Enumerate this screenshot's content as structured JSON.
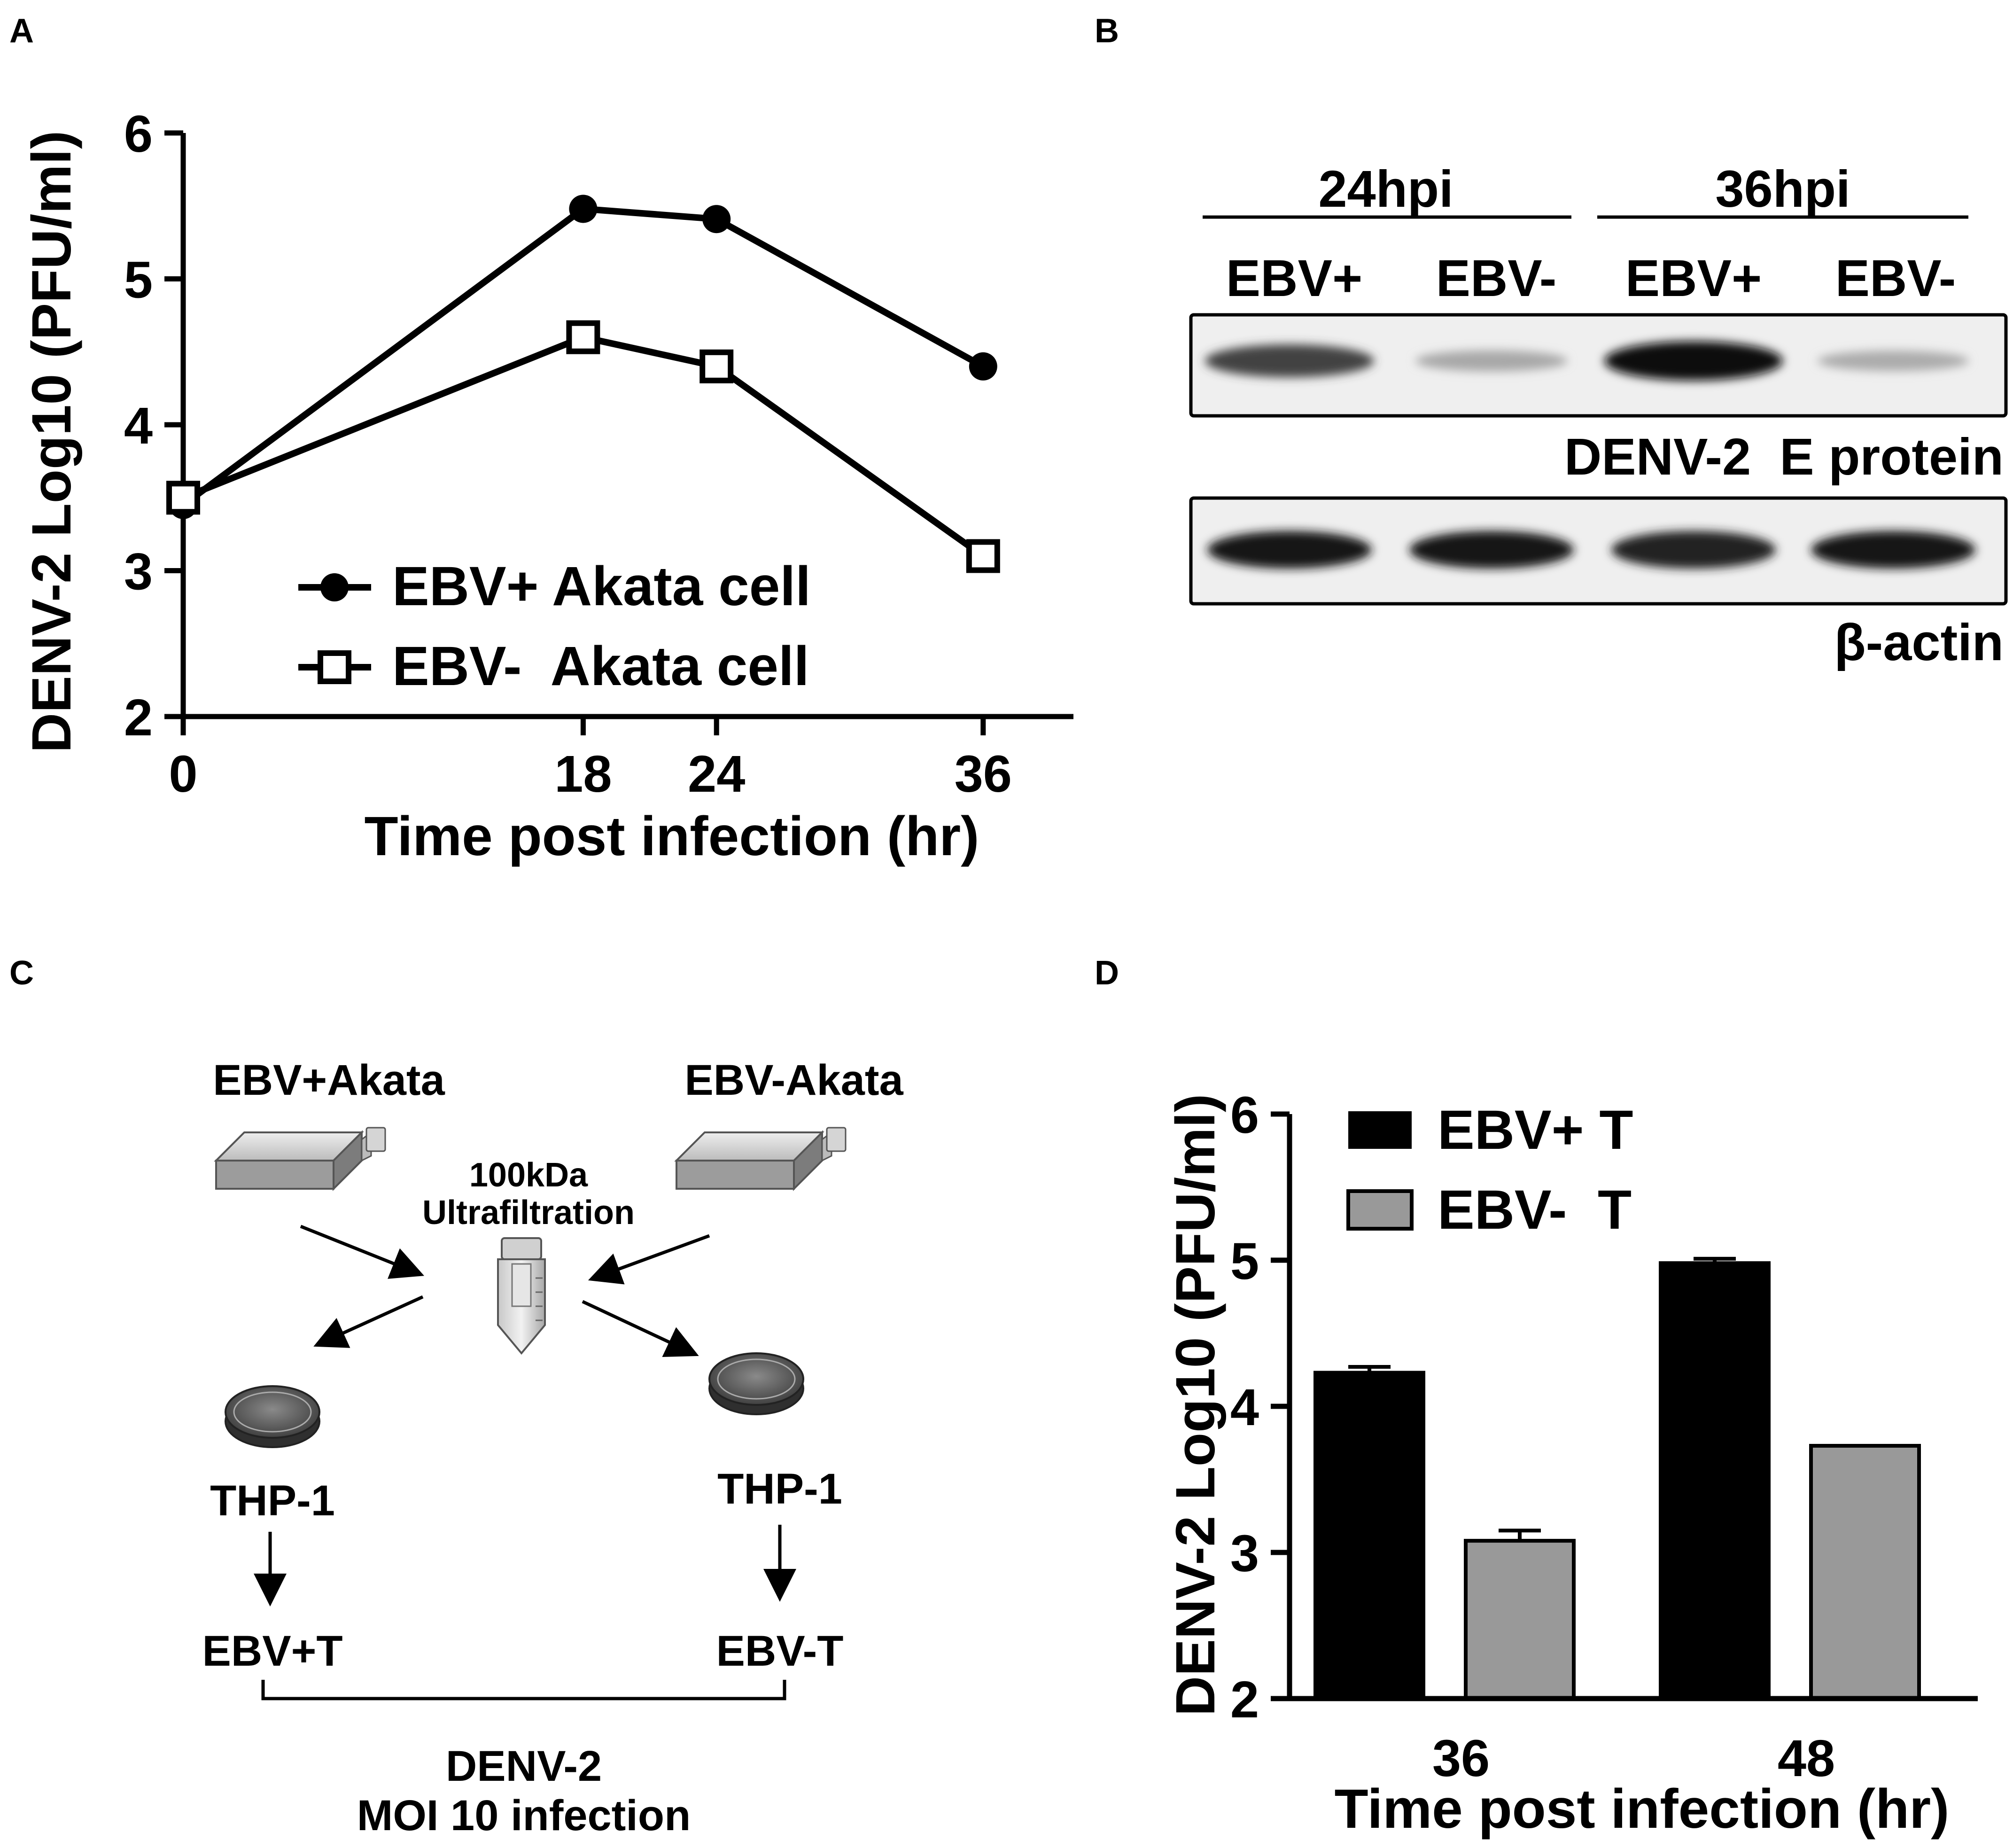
{
  "panels": {
    "A": {
      "label": "A"
    },
    "B": {
      "label": "B"
    },
    "C": {
      "label": "C"
    },
    "D": {
      "label": "D"
    }
  },
  "chart_data": [
    {
      "panel": "A",
      "type": "line",
      "xlabel": "Time post infection (hr)",
      "ylabel": "DENV-2 Log10 (PFU/ml)",
      "x": [
        0,
        18,
        24,
        36
      ],
      "xticks": [
        "0",
        "18",
        "24",
        "36"
      ],
      "xlim": [
        0,
        40
      ],
      "ylim": [
        2,
        6
      ],
      "yticks": [
        "2",
        "3",
        "4",
        "5",
        "6"
      ],
      "legend_position": "lower-left",
      "series": [
        {
          "name": "EBV+ Akata cell",
          "marker": "filled-circle",
          "values": [
            3.45,
            5.48,
            5.41,
            4.4
          ]
        },
        {
          "name": "EBV-  Akata cell",
          "marker": "open-square",
          "values": [
            3.5,
            4.6,
            4.4,
            3.1
          ]
        }
      ]
    },
    {
      "panel": "D",
      "type": "bar",
      "xlabel": "Time post infection (hr)",
      "ylabel": "DENV-2 Log10 (PFU/ml)",
      "categories": [
        "36",
        "48"
      ],
      "ylim": [
        2,
        6
      ],
      "yticks": [
        "2",
        "3",
        "4",
        "5",
        "6"
      ],
      "legend_position": "top-left",
      "series": [
        {
          "name": "EBV+ T",
          "color": "#000000",
          "values": [
            4.23,
            4.98
          ],
          "errors": [
            0.04,
            0.03
          ]
        },
        {
          "name": "EBV-  T",
          "color": "#999999",
          "values": [
            3.08,
            3.73
          ],
          "errors": [
            0.07,
            0.0
          ]
        }
      ]
    }
  ],
  "blot": {
    "groups": [
      "24hpi",
      "36hpi"
    ],
    "lanes": [
      "EBV+",
      "EBV-",
      "EBV+",
      "EBV-"
    ],
    "band_labels": [
      "DENV-2  E protein",
      "β-actin"
    ],
    "e_protein_intensity": [
      0.75,
      0.3,
      1.0,
      0.28
    ],
    "actin_intensity": [
      0.95,
      0.95,
      0.9,
      0.95
    ]
  },
  "diagram": {
    "left_flask": "EBV+Akata",
    "right_flask": "EBV-Akata",
    "filter_line1": "100kDa",
    "filter_line2": "Ultrafiltration",
    "left_cell": "THP-1",
    "right_cell": "THP-1",
    "left_result": "EBV+T",
    "right_result": "EBV-T",
    "infection_line1": "DENV-2",
    "infection_line2": "MOI 10 infection"
  }
}
